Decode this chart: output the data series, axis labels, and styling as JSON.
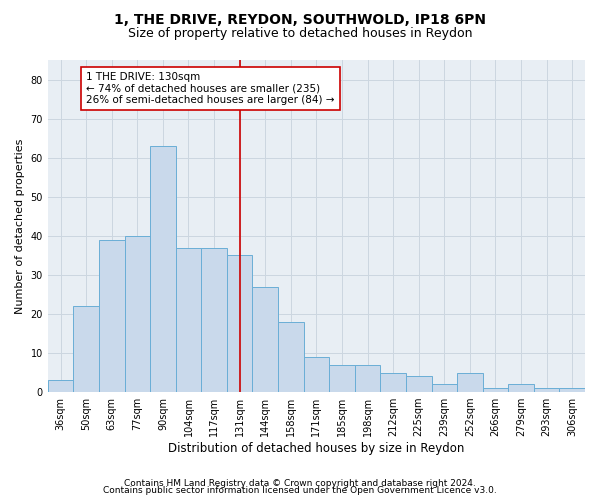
{
  "title1": "1, THE DRIVE, REYDON, SOUTHWOLD, IP18 6PN",
  "title2": "Size of property relative to detached houses in Reydon",
  "xlabel": "Distribution of detached houses by size in Reydon",
  "ylabel": "Number of detached properties",
  "categories": [
    "36sqm",
    "50sqm",
    "63sqm",
    "77sqm",
    "90sqm",
    "104sqm",
    "117sqm",
    "131sqm",
    "144sqm",
    "158sqm",
    "171sqm",
    "185sqm",
    "198sqm",
    "212sqm",
    "225sqm",
    "239sqm",
    "252sqm",
    "266sqm",
    "279sqm",
    "293sqm",
    "306sqm"
  ],
  "values": [
    3,
    22,
    39,
    40,
    63,
    37,
    37,
    35,
    27,
    18,
    9,
    7,
    7,
    5,
    4,
    2,
    5,
    1,
    2,
    1,
    1
  ],
  "bar_color": "#c9d9eb",
  "bar_edge_color": "#6aaed6",
  "bar_linewidth": 0.7,
  "vline_idx": 7,
  "vline_color": "#cc0000",
  "annotation_line1": "1 THE DRIVE: 130sqm",
  "annotation_line2": "← 74% of detached houses are smaller (235)",
  "annotation_line3": "26% of semi-detached houses are larger (84) →",
  "annotation_box_color": "#cc0000",
  "ylim": [
    0,
    85
  ],
  "yticks": [
    0,
    10,
    20,
    30,
    40,
    50,
    60,
    70,
    80
  ],
  "grid_color": "#ccd6e0",
  "bg_color": "#e8eef4",
  "footer1": "Contains HM Land Registry data © Crown copyright and database right 2024.",
  "footer2": "Contains public sector information licensed under the Open Government Licence v3.0.",
  "title1_fontsize": 10,
  "title2_fontsize": 9,
  "xlabel_fontsize": 8.5,
  "ylabel_fontsize": 8,
  "tick_fontsize": 7,
  "footer_fontsize": 6.5,
  "annotation_fontsize": 7.5
}
